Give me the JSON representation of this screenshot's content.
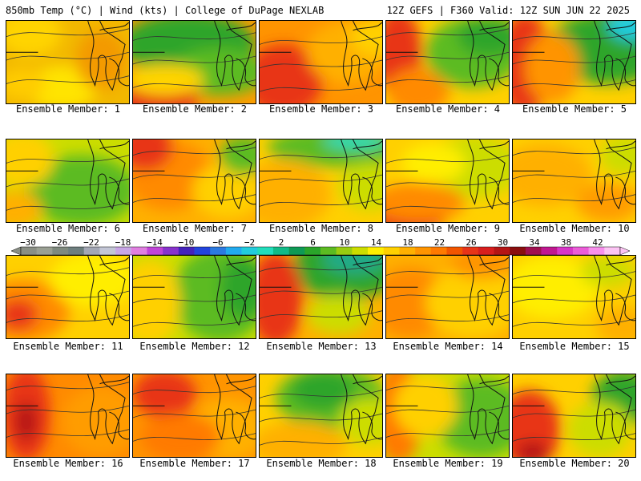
{
  "header": {
    "left": "850mb Temp (°C) | Wind (kts) | College of DuPage NEXLAB",
    "right": "12Z GEFS | F360 Valid: 12Z SUN JUN 22 2025"
  },
  "colorbar": {
    "tick_labels": [
      "−30",
      "−26",
      "−22",
      "−18",
      "−14",
      "−10",
      "−6",
      "−2",
      "2",
      "6",
      "10",
      "14",
      "18",
      "22",
      "26",
      "30",
      "34",
      "38",
      "42"
    ],
    "colors": [
      "#8a8f85",
      "#9aa093",
      "#7f8a7f",
      "#6e7f7f",
      "#a3a7b5",
      "#c3c6d6",
      "#c8a6e6",
      "#e07fe0",
      "#c044d8",
      "#8833cc",
      "#4422bb",
      "#2244dd",
      "#2c7ae0",
      "#22aaee",
      "#22ccdd",
      "#22ddbb",
      "#11bb88",
      "#0f9a55",
      "#2aa52a",
      "#5cbb22",
      "#99cc11",
      "#ccdd00",
      "#ffee00",
      "#ffd000",
      "#ffb000",
      "#ff9400",
      "#ff7a00",
      "#f25500",
      "#e83418",
      "#d81e1e",
      "#b51515",
      "#8a0f0f",
      "#a01050",
      "#c01890",
      "#d836c8",
      "#ec5cd8",
      "#f890ec",
      "#fcc4f4"
    ]
  },
  "panels": [
    {
      "label": "Ensemble Member: 1"
    },
    {
      "label": "Ensemble Member: 2"
    },
    {
      "label": "Ensemble Member: 3"
    },
    {
      "label": "Ensemble Member: 4"
    },
    {
      "label": "Ensemble Member: 5"
    },
    {
      "label": "Ensemble Member: 6"
    },
    {
      "label": "Ensemble Member: 7"
    },
    {
      "label": "Ensemble Member: 8"
    },
    {
      "label": "Ensemble Member: 9"
    },
    {
      "label": "Ensemble Member: 10"
    },
    {
      "label": "Ensemble Member: 11"
    },
    {
      "label": "Ensemble Member: 12"
    },
    {
      "label": "Ensemble Member: 13"
    },
    {
      "label": "Ensemble Member: 14"
    },
    {
      "label": "Ensemble Member: 15"
    },
    {
      "label": "Ensemble Member: 16"
    },
    {
      "label": "Ensemble Member: 17"
    },
    {
      "label": "Ensemble Member: 18"
    },
    {
      "label": "Ensemble Member: 19"
    },
    {
      "label": "Ensemble Member: 20"
    }
  ]
}
